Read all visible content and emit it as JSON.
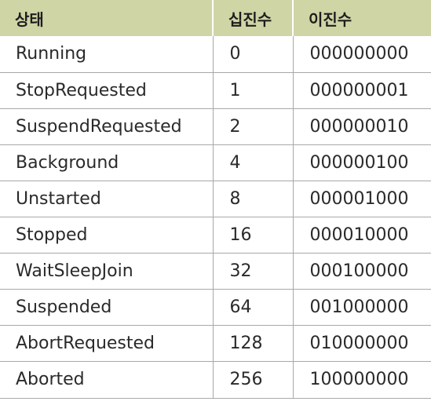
{
  "table": {
    "headers": [
      "상태",
      "십진수",
      "이진수"
    ],
    "rows": [
      [
        "Running",
        "0",
        "000000000"
      ],
      [
        "StopRequested",
        "1",
        "000000001"
      ],
      [
        "SuspendRequested",
        "2",
        "000000010"
      ],
      [
        "Background",
        "4",
        "000000100"
      ],
      [
        "Unstarted",
        "8",
        "000001000"
      ],
      [
        "Stopped",
        "16",
        "000010000"
      ],
      [
        "WaitSleepJoin",
        "32",
        "000100000"
      ],
      [
        "Suspended",
        "64",
        "001000000"
      ],
      [
        "AbortRequested",
        "128",
        "010000000"
      ],
      [
        "Aborted",
        "256",
        "100000000"
      ]
    ],
    "header_color": "#d0d5a6"
  }
}
